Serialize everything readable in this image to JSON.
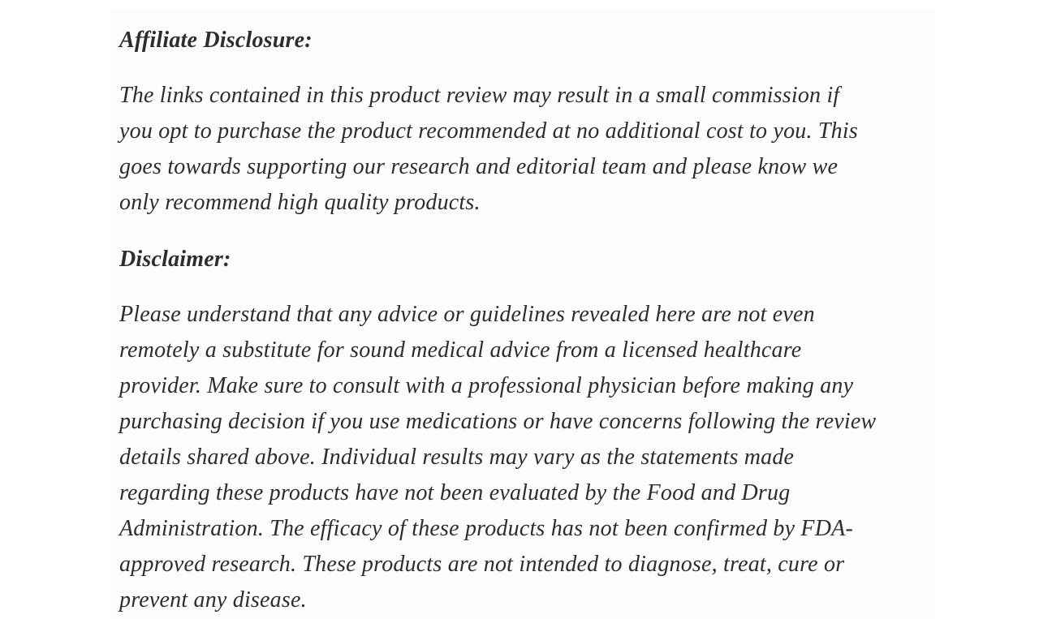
{
  "page": {
    "background": "#ffffff",
    "card_background": "#fcfcfc",
    "text_color": "#2d2d2d"
  },
  "article": {
    "affiliate_heading": "Affiliate Disclosure:",
    "affiliate_paragraph": "The links contained in this product review may result in a small commission if\nyou opt to purchase the product recommended at no additional cost to you. This\ngoes towards supporting our research and editorial team and please know we\nonly recommend high quality products.",
    "disclaimer_heading": "Disclaimer:",
    "disclaimer_paragraph": "Please understand that any advice or guidelines revealed here are not even\nremotely a substitute for sound medical advice from a licensed healthcare\nprovider. Make sure to consult with a professional physician before making any\npurchasing decision if you use medications or have concerns following the review\ndetails shared above. Individual results may vary as the statements made\nregarding these products have not been evaluated by the Food and Drug\nAdministration. The efficacy of these products has not been confirmed by FDA-\napproved research. These products are not intended to diagnose, treat, cure or\nprevent any disease."
  }
}
